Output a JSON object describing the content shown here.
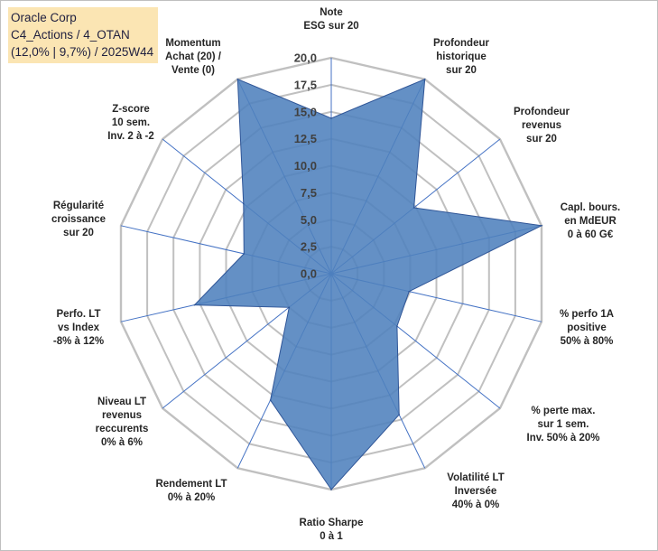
{
  "chart_data": {
    "type": "radar",
    "title_lines": [
      "Oracle Corp",
      "C4_Actions / 4_OTAN",
      "(12,0% | 9,7%) / 2025W44"
    ],
    "rmin": 0,
    "rmax": 20,
    "ticks": [
      "0,0",
      "2,5",
      "5,0",
      "7,5",
      "10,0",
      "12,5",
      "15,0",
      "17,5",
      "20,0"
    ],
    "colors": {
      "fill": "#4f81bd",
      "stroke": "#2f5597",
      "grid": "#c0c0c0",
      "spoke": "#4472c4",
      "title_bg": "#fbe5b3"
    },
    "axes": [
      {
        "label": [
          "Note",
          "ESG sur 20"
        ],
        "value": 14.4
      },
      {
        "label": [
          "Profondeur",
          "historique",
          "sur 20"
        ],
        "value": 20.0
      },
      {
        "label": [
          "Profondeur",
          "revenus",
          "sur 20"
        ],
        "value": 9.8
      },
      {
        "label": [
          "Capl. bours.",
          "en MdEUR",
          "0 à 60 G€"
        ],
        "value": 20.0
      },
      {
        "label": [
          "% perfo 1A",
          "positive",
          "50% à 80%"
        ],
        "value": 7.4
      },
      {
        "label": [
          "% perte max.",
          "sur 1 sem.",
          "Inv. 50% à 20%"
        ],
        "value": 7.8
      },
      {
        "label": [
          "Volatilité LT",
          "Inversée",
          "40% à 0%"
        ],
        "value": 14.5
      },
      {
        "label": [
          "Ratio Sharpe",
          "0 à 1"
        ],
        "value": 20.0
      },
      {
        "label": [
          "Rendement LT",
          "0% à 20%"
        ],
        "value": 13.0
      },
      {
        "label": [
          "Niveau LT",
          "revenus",
          "reccurents",
          "0% à 6%"
        ],
        "value": 5.0
      },
      {
        "label": [
          "Perfo. LT",
          "vs Index",
          "-8% à 12%"
        ],
        "value": 13.0
      },
      {
        "label": [
          "Régularité",
          "croissance",
          "sur 20"
        ],
        "value": 8.3
      },
      {
        "label": [
          "Z-score",
          "10 sem.",
          "Inv. 2 à -2"
        ],
        "value": 10.4
      },
      {
        "label": [
          "Momentum",
          "Achat (20) /",
          "Vente (0)"
        ],
        "value": 20.0
      }
    ]
  }
}
